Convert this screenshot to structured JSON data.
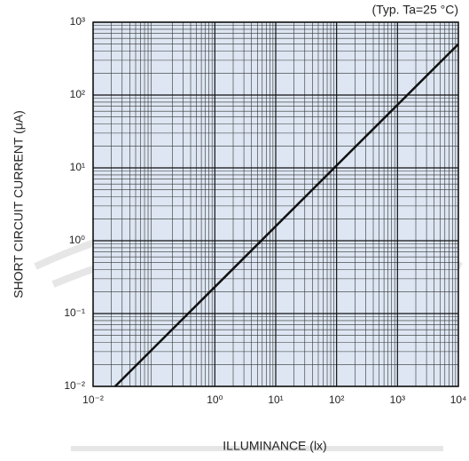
{
  "chart_data": {
    "type": "line",
    "annotation": "(Typ. Ta=25 °C)",
    "xlabel": "ILLUMINANCE (lx)",
    "ylabel": "SHORT CIRCUIT CURRENT (μA)",
    "x": [
      0.023,
      10000
    ],
    "series": [
      {
        "color": "#111111",
        "values": [
          0.01,
          500
        ]
      }
    ],
    "xlim": [
      0.01,
      10000
    ],
    "ylim": [
      0.01,
      1000
    ],
    "xscale": "log",
    "yscale": "log",
    "xticks": [
      {
        "value": 0.01,
        "label": "10⁻²"
      },
      {
        "value": 1,
        "label": "10⁰"
      },
      {
        "value": 10,
        "label": "10¹"
      },
      {
        "value": 100,
        "label": "10²"
      },
      {
        "value": 1000,
        "label": "10³"
      },
      {
        "value": 10000,
        "label": "10⁴"
      }
    ],
    "yticks": [
      {
        "value": 0.01,
        "label": "10⁻²"
      },
      {
        "value": 0.1,
        "label": "10⁻¹"
      },
      {
        "value": 1,
        "label": "10⁰"
      },
      {
        "value": 10,
        "label": "10¹"
      },
      {
        "value": 100,
        "label": "10²"
      },
      {
        "value": 1000,
        "label": "10³"
      }
    ],
    "grid": true,
    "minor_grid": true
  }
}
